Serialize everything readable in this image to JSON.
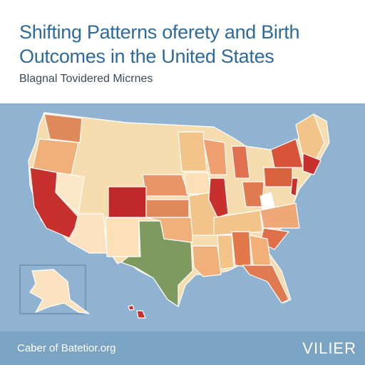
{
  "header": {
    "title_lines": [
      "Shifting Patterns oferety and Birth",
      "Outcomes in the United States"
    ],
    "subtitle": "Blagnal Tovidered Micrnes"
  },
  "footer": {
    "source": "Caber of Batetior.org",
    "brand": "VILIER"
  }
}
